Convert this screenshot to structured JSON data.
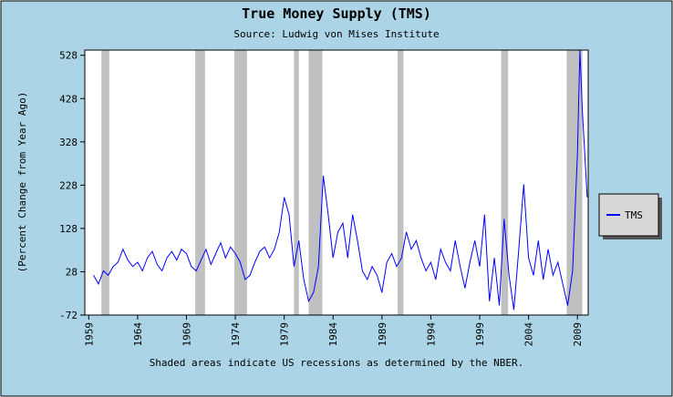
{
  "chart_data": {
    "type": "line",
    "title": "True Money Supply (TMS)",
    "subtitle": "Source: Ludwig von Mises Institute",
    "y_label": "(Percent Change from Year Ago)",
    "x_label": "Shaded areas indicate US recessions as determined by the NBER.",
    "xlim": [
      1958.6,
      2010.1
    ],
    "ylim": [
      -72,
      540
    ],
    "xticks": [
      1959,
      1964,
      1969,
      1974,
      1979,
      1984,
      1989,
      1994,
      1999,
      2004,
      2009
    ],
    "yticks": [
      -72,
      28,
      128,
      228,
      328,
      428,
      528
    ],
    "recessions": [
      [
        1960.3,
        1961.1
      ],
      [
        1969.9,
        1970.9
      ],
      [
        1973.9,
        1975.2
      ],
      [
        1980.0,
        1980.5
      ],
      [
        1981.5,
        1982.9
      ],
      [
        1990.6,
        1991.2
      ],
      [
        2001.2,
        2001.9
      ],
      [
        2007.9,
        2009.5
      ]
    ],
    "recession_color": "#c0c0c0",
    "legend": "right",
    "x": [
      1959.5,
      1960,
      1960.5,
      1961,
      1961.5,
      1962,
      1962.5,
      1963,
      1963.5,
      1964,
      1964.5,
      1965,
      1965.5,
      1966,
      1966.5,
      1967,
      1967.5,
      1968,
      1968.5,
      1969,
      1969.5,
      1970,
      1970.5,
      1971,
      1971.5,
      1972,
      1972.5,
      1973,
      1973.5,
      1974,
      1974.5,
      1975,
      1975.5,
      1976,
      1976.5,
      1977,
      1977.5,
      1978,
      1978.5,
      1979,
      1979.5,
      1980,
      1980.5,
      1981,
      1981.5,
      1982,
      1982.5,
      1983,
      1983.5,
      1984,
      1984.5,
      1985,
      1985.5,
      1986,
      1986.5,
      1987,
      1987.5,
      1988,
      1988.5,
      1989,
      1989.5,
      1990,
      1990.5,
      1991,
      1991.5,
      1992,
      1992.5,
      1993,
      1993.5,
      1994,
      1994.5,
      1995,
      1995.5,
      1996,
      1996.5,
      1997,
      1997.5,
      1998,
      1998.5,
      1999,
      1999.5,
      2000,
      2000.5,
      2001,
      2001.5,
      2002,
      2002.5,
      2003,
      2003.5,
      2004,
      2004.5,
      2005,
      2005.5,
      2006,
      2006.5,
      2007,
      2007.5,
      2008,
      2008.5,
      2009,
      2009.25,
      2009.5,
      2010
    ],
    "series": [
      {
        "name": "TMS",
        "color": "#0000ff",
        "values": [
          20,
          0,
          30,
          20,
          40,
          50,
          80,
          55,
          40,
          50,
          30,
          60,
          75,
          45,
          30,
          60,
          75,
          55,
          80,
          70,
          40,
          30,
          55,
          80,
          45,
          70,
          95,
          60,
          85,
          70,
          50,
          10,
          20,
          50,
          75,
          85,
          60,
          80,
          120,
          200,
          160,
          40,
          100,
          10,
          -40,
          -20,
          40,
          250,
          160,
          60,
          120,
          140,
          60,
          160,
          100,
          30,
          10,
          40,
          20,
          -20,
          50,
          70,
          40,
          60,
          120,
          80,
          100,
          60,
          30,
          50,
          10,
          80,
          50,
          30,
          100,
          40,
          -10,
          50,
          100,
          40,
          160,
          -40,
          60,
          -50,
          150,
          20,
          -60,
          80,
          230,
          60,
          20,
          100,
          10,
          80,
          20,
          50,
          0,
          -50,
          30,
          300,
          540,
          400,
          200
        ]
      }
    ]
  }
}
